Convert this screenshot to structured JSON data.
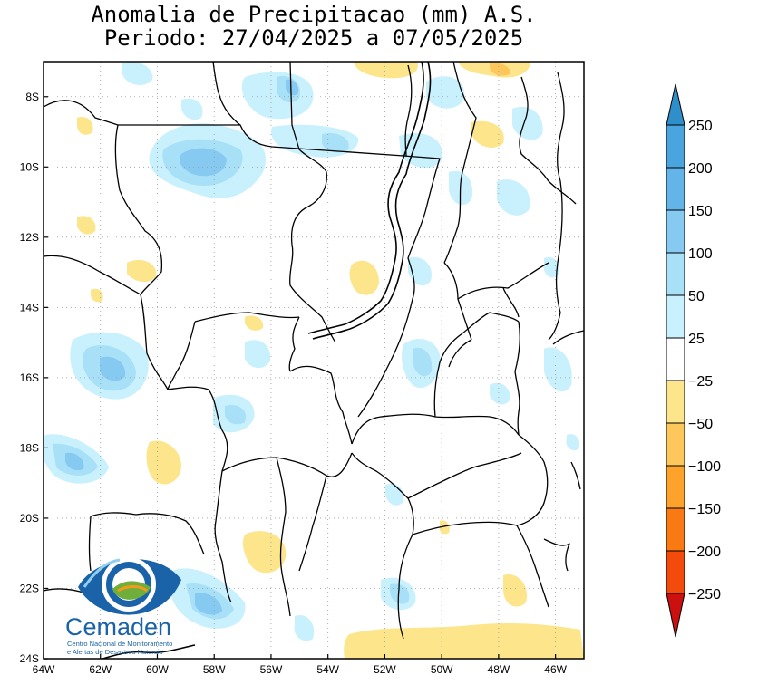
{
  "title": "Anomalia de Precipitacao (mm) A.S.",
  "subtitle": "Periodo: 27/04/2025 a 07/05/2025",
  "map": {
    "lat_labels": [
      "8S",
      "10S",
      "12S",
      "14S",
      "16S",
      "18S",
      "20S",
      "22S",
      "24S"
    ],
    "lon_labels": [
      "64W",
      "62W",
      "60W",
      "58W",
      "56W",
      "54W",
      "52W",
      "50W",
      "48W",
      "46W"
    ],
    "lat_range": [
      -24,
      -7
    ],
    "lon_range": [
      -64,
      -45
    ],
    "grid": true
  },
  "colorbar": {
    "labels": [
      "250",
      "200",
      "150",
      "100",
      "50",
      "25",
      "−25",
      "−50",
      "−100",
      "−150",
      "−200",
      "−250"
    ],
    "colors": {
      "pos_250": "#2f8fcb",
      "pos_200": "#4aa4de",
      "pos_150": "#62b4e9",
      "pos_100": "#86caf2",
      "pos_50": "#a8e0f8",
      "pos_25": "#c9f1fd",
      "neutral": "#ffffff",
      "neg_25": "#fde58c",
      "neg_50": "#fdc75c",
      "neg_100": "#fda22b",
      "neg_150": "#f97a12",
      "neg_200": "#f24b0c",
      "neg_250": "#cc1010"
    }
  },
  "logo": {
    "name": "Cemaden",
    "line1": "Centro Nacional de Monitoramento",
    "line2": "e Alertas de Desastres Naturais"
  }
}
